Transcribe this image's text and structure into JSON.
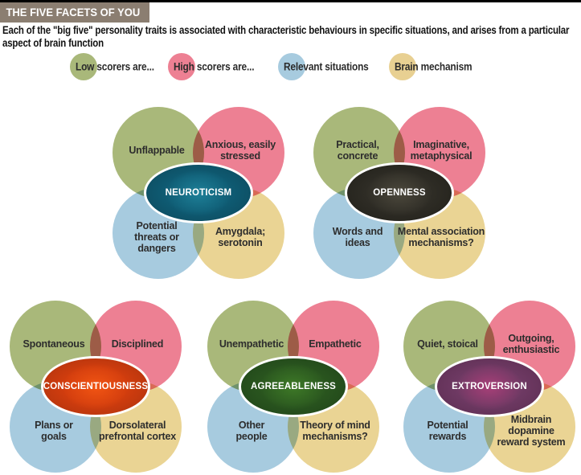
{
  "header": {
    "title": "THE FIVE FACETS OF YOU",
    "subtitle_line1": "Each of the \"big five\" personality traits is associated with characteristic behaviours in specific situations, and arises from a particular",
    "subtitle_line2": "aspect of brain function"
  },
  "legend": {
    "low": {
      "label": "Low scorers are...",
      "color": "#a9b87a"
    },
    "high": {
      "label": "High scorers are...",
      "color": "#ed8093"
    },
    "situations": {
      "label": "Relevant situations",
      "color": "#a7cbdf"
    },
    "brain": {
      "label": "Brain mechanism",
      "color": "#e8d092"
    }
  },
  "palette": {
    "low_scorer_circle": "#a9b87a",
    "high_scorer_circle": "#ed8093",
    "situations_circle": "#a7cbdf",
    "brain_circle": "#ead494",
    "title_bar": "#8b7e71",
    "top_strip": "#000000"
  },
  "clusters": [
    {
      "trait": "NEUROTICISM",
      "trait_color": "#0f5c74",
      "low": "Unflappable",
      "high": "Anxious, easily\nstressed",
      "situations": "Potential\nthreats or\ndangers",
      "brain": "Amygdala;\nserotonin"
    },
    {
      "trait": "OPENNESS",
      "trait_color": "#2f2d26",
      "low": "Practical,\nconcrete",
      "high": "Imaginative,\nmetaphysical",
      "situations": "Words and\nideas",
      "brain": "Mental association\nmechanisms?"
    },
    {
      "trait": "CONSCIENTIOUSNESS",
      "trait_color": "#d23d0e",
      "low": "Spontaneous",
      "high": "Disciplined",
      "situations": "Plans or\ngoals",
      "brain": "Dorsolateral\nprefrontal cortex"
    },
    {
      "trait": "AGREEABLENESS",
      "trait_color": "#2a561f",
      "low": "Unempathetic",
      "high": "Empathetic",
      "situations": "Other\npeople",
      "brain": "Theory of mind\nmechanisms?"
    },
    {
      "trait": "EXTROVERSION",
      "trait_color": "#6f3a64",
      "low": "Quiet, stoical",
      "high": "Outgoing,\nenthusiastic",
      "situations": "Potential\nrewards",
      "brain": "Midbrain\ndopamine\nreward system"
    }
  ]
}
